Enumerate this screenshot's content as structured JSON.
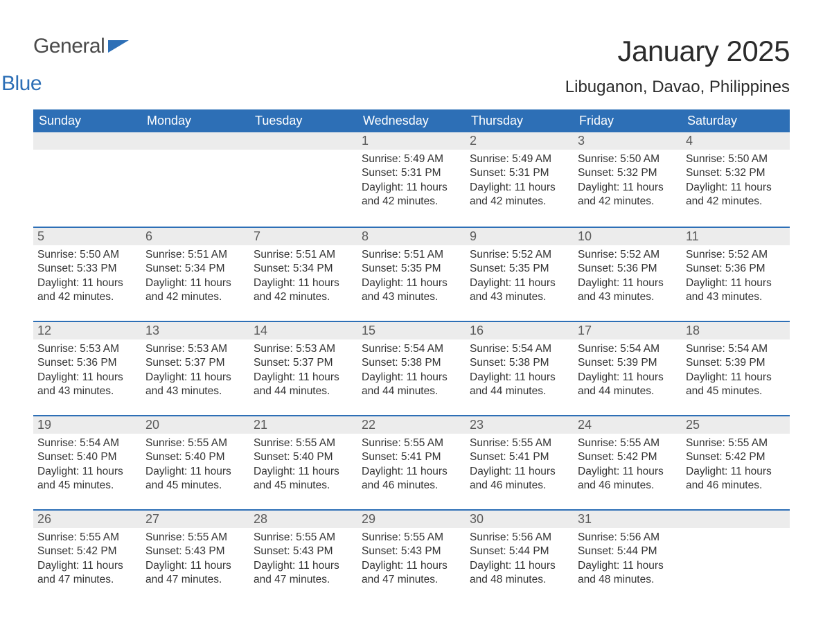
{
  "logo": {
    "text1": "General",
    "text2": "Blue",
    "shape_color": "#2d6fb6"
  },
  "title": "January 2025",
  "location": "Libuganon, Davao, Philippines",
  "colors": {
    "header_bg": "#2d6fb6",
    "header_text": "#ffffff",
    "daynum_bg": "#ececec",
    "daynum_text": "#5a5a5a",
    "body_text": "#333333",
    "row_divider": "#2d6fb6",
    "page_bg": "#ffffff"
  },
  "fonts": {
    "title_size_pt": 32,
    "location_size_pt": 18,
    "header_size_pt": 14,
    "daynum_size_pt": 14,
    "body_size_pt": 12
  },
  "weekdays": [
    "Sunday",
    "Monday",
    "Tuesday",
    "Wednesday",
    "Thursday",
    "Friday",
    "Saturday"
  ],
  "weeks": [
    [
      null,
      null,
      null,
      {
        "n": "1",
        "sunrise": "5:49 AM",
        "sunset": "5:31 PM",
        "daylight": "11 hours and 42 minutes."
      },
      {
        "n": "2",
        "sunrise": "5:49 AM",
        "sunset": "5:31 PM",
        "daylight": "11 hours and 42 minutes."
      },
      {
        "n": "3",
        "sunrise": "5:50 AM",
        "sunset": "5:32 PM",
        "daylight": "11 hours and 42 minutes."
      },
      {
        "n": "4",
        "sunrise": "5:50 AM",
        "sunset": "5:32 PM",
        "daylight": "11 hours and 42 minutes."
      }
    ],
    [
      {
        "n": "5",
        "sunrise": "5:50 AM",
        "sunset": "5:33 PM",
        "daylight": "11 hours and 42 minutes."
      },
      {
        "n": "6",
        "sunrise": "5:51 AM",
        "sunset": "5:34 PM",
        "daylight": "11 hours and 42 minutes."
      },
      {
        "n": "7",
        "sunrise": "5:51 AM",
        "sunset": "5:34 PM",
        "daylight": "11 hours and 42 minutes."
      },
      {
        "n": "8",
        "sunrise": "5:51 AM",
        "sunset": "5:35 PM",
        "daylight": "11 hours and 43 minutes."
      },
      {
        "n": "9",
        "sunrise": "5:52 AM",
        "sunset": "5:35 PM",
        "daylight": "11 hours and 43 minutes."
      },
      {
        "n": "10",
        "sunrise": "5:52 AM",
        "sunset": "5:36 PM",
        "daylight": "11 hours and 43 minutes."
      },
      {
        "n": "11",
        "sunrise": "5:52 AM",
        "sunset": "5:36 PM",
        "daylight": "11 hours and 43 minutes."
      }
    ],
    [
      {
        "n": "12",
        "sunrise": "5:53 AM",
        "sunset": "5:36 PM",
        "daylight": "11 hours and 43 minutes."
      },
      {
        "n": "13",
        "sunrise": "5:53 AM",
        "sunset": "5:37 PM",
        "daylight": "11 hours and 43 minutes."
      },
      {
        "n": "14",
        "sunrise": "5:53 AM",
        "sunset": "5:37 PM",
        "daylight": "11 hours and 44 minutes."
      },
      {
        "n": "15",
        "sunrise": "5:54 AM",
        "sunset": "5:38 PM",
        "daylight": "11 hours and 44 minutes."
      },
      {
        "n": "16",
        "sunrise": "5:54 AM",
        "sunset": "5:38 PM",
        "daylight": "11 hours and 44 minutes."
      },
      {
        "n": "17",
        "sunrise": "5:54 AM",
        "sunset": "5:39 PM",
        "daylight": "11 hours and 44 minutes."
      },
      {
        "n": "18",
        "sunrise": "5:54 AM",
        "sunset": "5:39 PM",
        "daylight": "11 hours and 45 minutes."
      }
    ],
    [
      {
        "n": "19",
        "sunrise": "5:54 AM",
        "sunset": "5:40 PM",
        "daylight": "11 hours and 45 minutes."
      },
      {
        "n": "20",
        "sunrise": "5:55 AM",
        "sunset": "5:40 PM",
        "daylight": "11 hours and 45 minutes."
      },
      {
        "n": "21",
        "sunrise": "5:55 AM",
        "sunset": "5:40 PM",
        "daylight": "11 hours and 45 minutes."
      },
      {
        "n": "22",
        "sunrise": "5:55 AM",
        "sunset": "5:41 PM",
        "daylight": "11 hours and 46 minutes."
      },
      {
        "n": "23",
        "sunrise": "5:55 AM",
        "sunset": "5:41 PM",
        "daylight": "11 hours and 46 minutes."
      },
      {
        "n": "24",
        "sunrise": "5:55 AM",
        "sunset": "5:42 PM",
        "daylight": "11 hours and 46 minutes."
      },
      {
        "n": "25",
        "sunrise": "5:55 AM",
        "sunset": "5:42 PM",
        "daylight": "11 hours and 46 minutes."
      }
    ],
    [
      {
        "n": "26",
        "sunrise": "5:55 AM",
        "sunset": "5:42 PM",
        "daylight": "11 hours and 47 minutes."
      },
      {
        "n": "27",
        "sunrise": "5:55 AM",
        "sunset": "5:43 PM",
        "daylight": "11 hours and 47 minutes."
      },
      {
        "n": "28",
        "sunrise": "5:55 AM",
        "sunset": "5:43 PM",
        "daylight": "11 hours and 47 minutes."
      },
      {
        "n": "29",
        "sunrise": "5:55 AM",
        "sunset": "5:43 PM",
        "daylight": "11 hours and 47 minutes."
      },
      {
        "n": "30",
        "sunrise": "5:56 AM",
        "sunset": "5:44 PM",
        "daylight": "11 hours and 48 minutes."
      },
      {
        "n": "31",
        "sunrise": "5:56 AM",
        "sunset": "5:44 PM",
        "daylight": "11 hours and 48 minutes."
      },
      null
    ]
  ],
  "labels": {
    "sunrise": "Sunrise:",
    "sunset": "Sunset:",
    "daylight": "Daylight:"
  }
}
